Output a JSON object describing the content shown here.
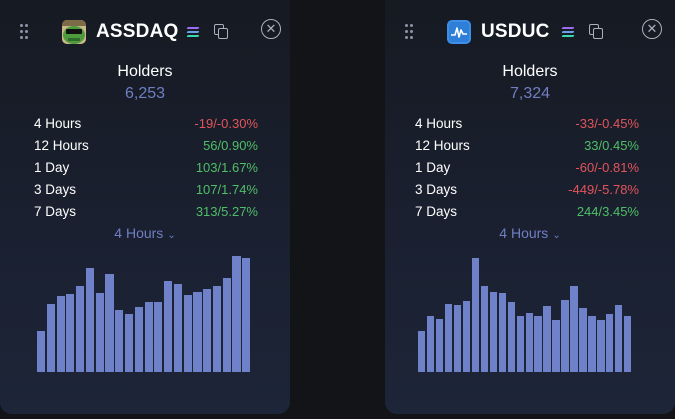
{
  "tokens": [
    {
      "ticker": "ASSDAQ",
      "holders_label": "Holders",
      "holders_value": "6,253",
      "rows": [
        {
          "label": "4 Hours",
          "value": "-19/-0.30%",
          "trend": "down"
        },
        {
          "label": "12 Hours",
          "value": "56/0.90%",
          "trend": "up"
        },
        {
          "label": "1 Day",
          "value": "103/1.67%",
          "trend": "up"
        },
        {
          "label": "3 Days",
          "value": "107/1.74%",
          "trend": "up"
        },
        {
          "label": "7 Days",
          "value": "313/5.27%",
          "trend": "up"
        }
      ],
      "range_label": "4 Hours",
      "bar_levels": [
        34,
        57,
        63,
        65,
        72,
        87,
        66,
        82,
        52,
        48,
        54,
        58,
        58,
        76,
        73,
        64,
        67,
        69,
        72,
        78,
        97,
        95
      ],
      "icons": [
        "drag-handle-icon",
        "frog-logo-icon",
        "solana-icon",
        "copy-icon",
        "close-icon"
      ]
    },
    {
      "ticker": "USDUC",
      "holders_label": "Holders",
      "holders_value": "7,324",
      "rows": [
        {
          "label": "4 Hours",
          "value": "-33/-0.45%",
          "trend": "down"
        },
        {
          "label": "12 Hours",
          "value": "33/0.45%",
          "trend": "up"
        },
        {
          "label": "1 Day",
          "value": "-60/-0.81%",
          "trend": "down"
        },
        {
          "label": "3 Days",
          "value": "-449/-5.78%",
          "trend": "down"
        },
        {
          "label": "7 Days",
          "value": "244/3.45%",
          "trend": "up"
        }
      ],
      "range_label": "4 Hours",
      "bar_levels": [
        34,
        47,
        44,
        57,
        56,
        59,
        95,
        72,
        67,
        66,
        58,
        47,
        49,
        47,
        55,
        43,
        60,
        72,
        53,
        47,
        43,
        48,
        56,
        47
      ],
      "icons": [
        "drag-handle-icon",
        "usduc-logo-icon",
        "solana-icon",
        "copy-icon",
        "close-icon"
      ]
    }
  ],
  "colors": {
    "up": "#4fbf67",
    "down": "#e2545b",
    "accent": "#6f7fc2",
    "bar": "#6f82c9"
  }
}
